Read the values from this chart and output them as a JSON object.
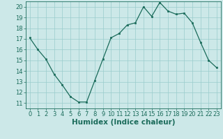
{
  "x": [
    0,
    1,
    2,
    3,
    4,
    5,
    6,
    7,
    8,
    9,
    10,
    11,
    12,
    13,
    14,
    15,
    16,
    17,
    18,
    19,
    20,
    21,
    22,
    23
  ],
  "y": [
    17.1,
    16.0,
    15.1,
    13.7,
    12.7,
    11.6,
    11.1,
    11.1,
    13.1,
    15.1,
    17.1,
    17.5,
    18.3,
    18.5,
    20.0,
    19.1,
    20.4,
    19.6,
    19.3,
    19.4,
    18.5,
    16.7,
    15.0,
    14.3
  ],
  "xlabel": "Humidex (Indice chaleur)",
  "xlim": [
    -0.5,
    23.5
  ],
  "ylim": [
    10.5,
    20.5
  ],
  "yticks": [
    11,
    12,
    13,
    14,
    15,
    16,
    17,
    18,
    19,
    20
  ],
  "xticks": [
    0,
    1,
    2,
    3,
    4,
    5,
    6,
    7,
    8,
    9,
    10,
    11,
    12,
    13,
    14,
    15,
    16,
    17,
    18,
    19,
    20,
    21,
    22,
    23
  ],
  "line_color": "#1a6b5a",
  "marker_color": "#1a6b5a",
  "bg_color": "#cce8e8",
  "grid_color": "#99cccc",
  "xlabel_fontsize": 7.5,
  "tick_fontsize": 6.0
}
